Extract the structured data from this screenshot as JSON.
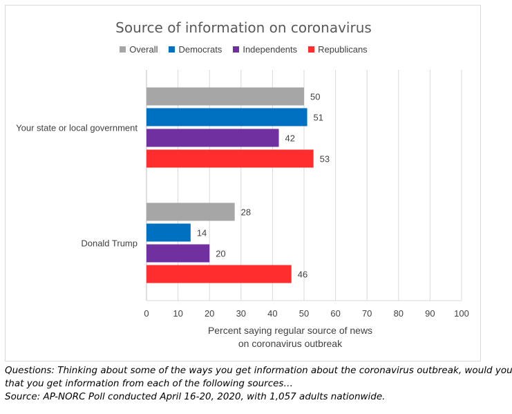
{
  "chart_data": {
    "type": "bar",
    "orientation": "horizontal",
    "title": "Source of information on coronavirus",
    "categories": [
      "Your state or local government",
      "Donald Trump"
    ],
    "series": [
      {
        "name": "Overall",
        "color": "#a6a6a6",
        "values": [
          50,
          28
        ]
      },
      {
        "name": "Democrats",
        "color": "#0070c0",
        "values": [
          51,
          14
        ]
      },
      {
        "name": "Independents",
        "color": "#7030a0",
        "values": [
          42,
          20
        ]
      },
      {
        "name": "Republicans",
        "color": "#ff2d2d",
        "values": [
          53,
          46
        ]
      }
    ],
    "xlim": [
      0,
      100
    ],
    "xticks": [
      "0",
      "10",
      "20",
      "30",
      "40",
      "50",
      "60",
      "70",
      "80",
      "90",
      "100"
    ],
    "xlabel_lines": [
      "Percent saying regular source of news",
      "on coronavirus outbreak"
    ],
    "ylabel": "",
    "legend_position": "top",
    "grid": true
  },
  "caption": {
    "question_line1": "Questions: Thinking about some of the ways you get information about the coronavirus outbreak, would you say",
    "question_line2": "that you get information from each of the following sources…",
    "source": "Source: AP-NORC Poll conducted April 16-20, 2020, with 1,057 adults nationwide."
  }
}
